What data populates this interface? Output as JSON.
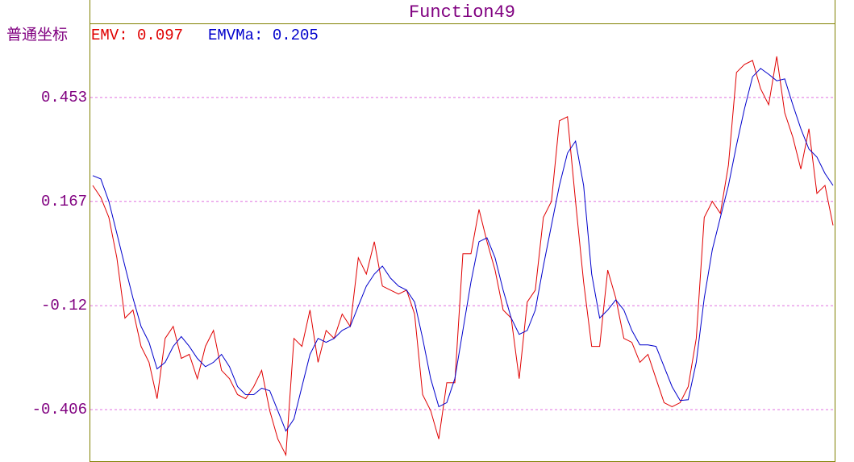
{
  "chart_data": {
    "type": "line",
    "title": "Function49",
    "axis_mode": "普通坐标",
    "ylim": [
      -0.548,
      0.657
    ],
    "yticks": [
      0.453,
      0.167,
      -0.12,
      -0.406
    ],
    "grid": true,
    "series": [
      {
        "name": "EMV: 0.097",
        "color": "#e00000",
        "values": [
          0.211,
          0.178,
          0.123,
          0.012,
          -0.154,
          -0.132,
          -0.232,
          -0.276,
          -0.376,
          -0.21,
          -0.177,
          -0.265,
          -0.254,
          -0.321,
          -0.232,
          -0.188,
          -0.298,
          -0.321,
          -0.365,
          -0.376,
          -0.343,
          -0.298,
          -0.409,
          -0.487,
          -0.531,
          -0.21,
          -0.232,
          -0.132,
          -0.276,
          -0.188,
          -0.21,
          -0.143,
          -0.177,
          0.012,
          -0.033,
          0.056,
          -0.066,
          -0.077,
          -0.088,
          -0.077,
          -0.143,
          -0.365,
          -0.409,
          -0.487,
          -0.332,
          -0.332,
          0.023,
          0.023,
          0.145,
          0.056,
          -0.022,
          -0.132,
          -0.154,
          -0.321,
          -0.11,
          -0.077,
          0.123,
          0.167,
          0.389,
          0.4,
          0.167,
          -0.055,
          -0.232,
          -0.232,
          -0.022,
          -0.099,
          -0.21,
          -0.221,
          -0.276,
          -0.254,
          -0.321,
          -0.387,
          -0.398,
          -0.387,
          -0.343,
          -0.21,
          0.123,
          0.167,
          0.134,
          0.267,
          0.522,
          0.544,
          0.555,
          0.477,
          0.433,
          0.566,
          0.411,
          0.344,
          0.256,
          0.367,
          0.189,
          0.211,
          0.101
        ]
      },
      {
        "name": "EMVMa: 0.205",
        "color": "#0000cc",
        "values": [
          0.238,
          0.229,
          0.167,
          0.079,
          -0.011,
          -0.099,
          -0.177,
          -0.221,
          -0.294,
          -0.276,
          -0.232,
          -0.205,
          -0.232,
          -0.265,
          -0.288,
          -0.276,
          -0.254,
          -0.288,
          -0.343,
          -0.365,
          -0.365,
          -0.347,
          -0.354,
          -0.409,
          -0.465,
          -0.432,
          -0.343,
          -0.254,
          -0.21,
          -0.221,
          -0.21,
          -0.188,
          -0.177,
          -0.121,
          -0.066,
          -0.033,
          -0.011,
          -0.044,
          -0.066,
          -0.077,
          -0.11,
          -0.21,
          -0.321,
          -0.398,
          -0.387,
          -0.321,
          -0.188,
          -0.055,
          0.056,
          0.067,
          0.012,
          -0.077,
          -0.154,
          -0.199,
          -0.188,
          -0.132,
          -0.011,
          0.101,
          0.211,
          0.3,
          0.333,
          0.211,
          -0.033,
          -0.154,
          -0.132,
          -0.104,
          -0.132,
          -0.188,
          -0.228,
          -0.228,
          -0.232,
          -0.288,
          -0.343,
          -0.381,
          -0.379,
          -0.276,
          -0.099,
          0.034,
          0.123,
          0.211,
          0.322,
          0.422,
          0.51,
          0.533,
          0.517,
          0.499,
          0.504,
          0.433,
          0.367,
          0.311,
          0.289,
          0.244,
          0.211
        ]
      }
    ]
  }
}
